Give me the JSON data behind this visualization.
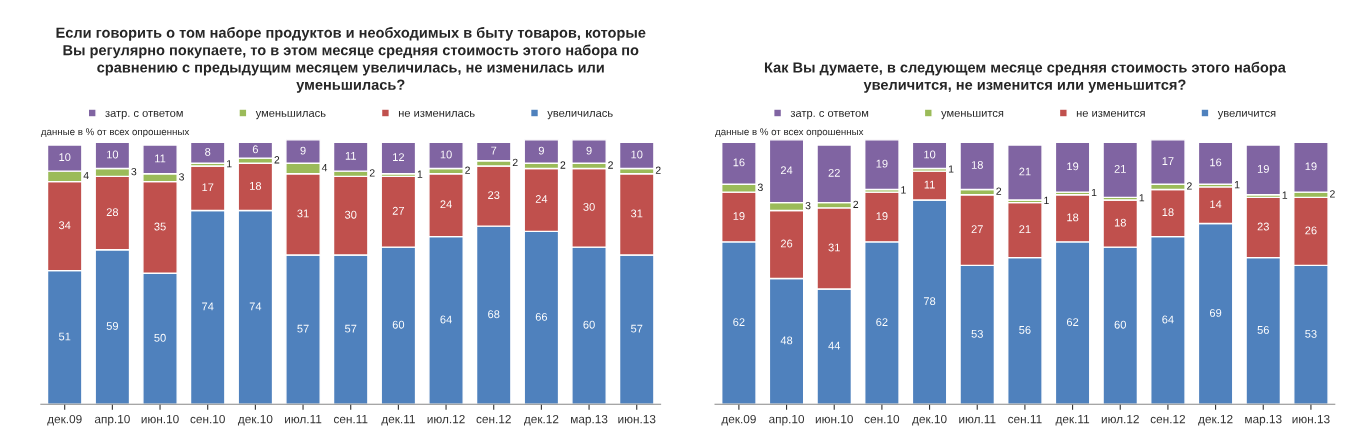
{
  "chart_data": [
    {
      "type": "bar",
      "stacked": true,
      "data_labels": true,
      "legend": "top",
      "tick_labels": "x",
      "title": "Если говорить о том наборе продуктов и необходимых в быту товаров, которые\nВы регулярно покупаете, то в этом месяце средняя стоимость этого набора по\nсравнению с предыдущим месяцем увеличилась, не изменилась или\nуменьшилась?",
      "annotations": [
        "данные в % от всех опрошенных"
      ],
      "categories": [
        "дек.09",
        "апр.10",
        "июн.10",
        "сен.10",
        "дек.10",
        "июл.11",
        "сен.11",
        "дек.11",
        "июл.12",
        "сен.12",
        "дек.12",
        "мар.13",
        "июн.13"
      ],
      "series": [
        {
          "name": "увеличилась",
          "color": "#4f81bd",
          "values": [
            51,
            59,
            50,
            74,
            74,
            57,
            57,
            60,
            64,
            68,
            66,
            60,
            57
          ]
        },
        {
          "name": "не изменилась",
          "color": "#c0504d",
          "values": [
            34,
            28,
            35,
            17,
            18,
            31,
            30,
            27,
            24,
            23,
            24,
            30,
            31
          ]
        },
        {
          "name": "уменьшилась",
          "color": "#9bbb59",
          "values": [
            4,
            3,
            3,
            1,
            2,
            4,
            2,
            1,
            2,
            2,
            2,
            2,
            2
          ]
        },
        {
          "name": "затр. с ответом",
          "color": "#8064a2",
          "values": [
            10,
            10,
            11,
            8,
            6,
            9,
            11,
            12,
            10,
            7,
            9,
            9,
            10
          ]
        }
      ]
    },
    {
      "type": "bar",
      "stacked": true,
      "data_labels": true,
      "legend": "top",
      "tick_labels": "x",
      "title": "Как Вы думаете, в следующем месяце средняя стоимость этого набора\nувеличится, не изменится или уменьшится?",
      "annotations": [
        "данные в % от всех опрошенных"
      ],
      "categories": [
        "дек.09",
        "апр.10",
        "июн.10",
        "сен.10",
        "дек.10",
        "июл.11",
        "сен.11",
        "дек.11",
        "июл.12",
        "сен.12",
        "дек.12",
        "мар.13",
        "июн.13"
      ],
      "series": [
        {
          "name": "увеличится",
          "color": "#4f81bd",
          "values": [
            62,
            48,
            44,
            62,
            78,
            53,
            56,
            62,
            60,
            64,
            69,
            56,
            53
          ]
        },
        {
          "name": "не изменится",
          "color": "#c0504d",
          "values": [
            19,
            26,
            31,
            19,
            11,
            27,
            21,
            18,
            18,
            18,
            14,
            23,
            26
          ]
        },
        {
          "name": "уменьшится",
          "color": "#9bbb59",
          "values": [
            3,
            3,
            2,
            1,
            1,
            2,
            1,
            1,
            1,
            2,
            1,
            1,
            2
          ]
        },
        {
          "name": "затр. с ответом",
          "color": "#8064a2",
          "values": [
            16,
            24,
            22,
            19,
            10,
            18,
            21,
            19,
            21,
            17,
            16,
            19,
            19
          ]
        }
      ]
    }
  ]
}
